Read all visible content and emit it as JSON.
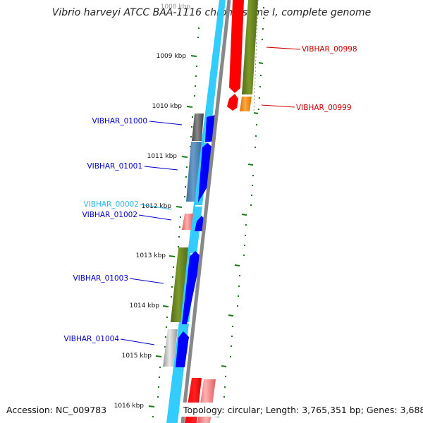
{
  "title": "Vibrio harveyi ATCC BAA-1116 chromosome I, complete genome",
  "footer": {
    "accession": "Accession: NC_009783",
    "summary": "Topology: circular; Length: 3,765,351 bp; Genes: 3,688"
  },
  "scale": {
    "labels": [
      "1008 kbp",
      "1009 kbp",
      "1010 kbp",
      "1011 kbp",
      "1012 kbp",
      "1013 kbp",
      "1014 kbp",
      "1015 kbp",
      "1016 kbp"
    ]
  },
  "genes": {
    "left": [
      "VIBHAR_01000",
      "VIBHAR_01001",
      "VIBHAR_00002",
      "VIBHAR_01002",
      "VIBHAR_01003",
      "VIBHAR_01004"
    ],
    "right": [
      "VIBHAR_00998",
      "VIBHAR_00999"
    ]
  },
  "colors": {
    "title_text": "#222222",
    "blue_label": "#0000cc",
    "red_label": "#cc0000",
    "cyan_label": "#29b6e6",
    "backbone": "#888888",
    "cds_track": "#0000ff",
    "gene_track": "#33ccff",
    "forward_cds": "#ff0000",
    "tick_green": "#1a7a1a",
    "cog_olive": "#6b8e23",
    "cog_orange": "#ff8c00",
    "cog_steelblue": "#4682b4",
    "cog_gray": "#666666",
    "cog_pink": "#f08080",
    "cog_lightgray": "#bbbbbb"
  }
}
